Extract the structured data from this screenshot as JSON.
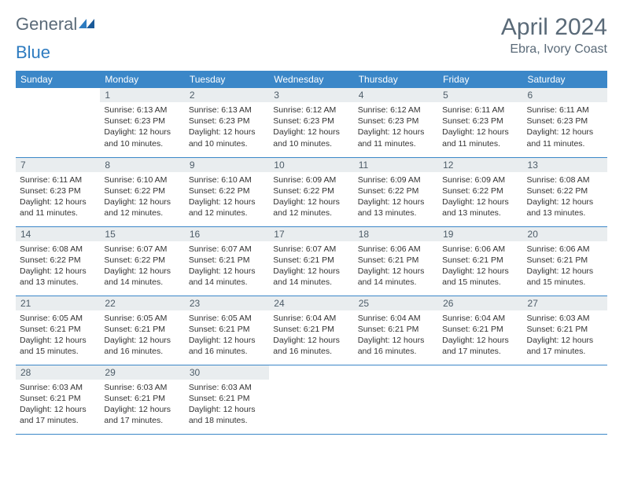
{
  "logo": {
    "part1": "General",
    "part2": "Blue"
  },
  "title": "April 2024",
  "location": "Ebra, Ivory Coast",
  "columns": [
    "Sunday",
    "Monday",
    "Tuesday",
    "Wednesday",
    "Thursday",
    "Friday",
    "Saturday"
  ],
  "colors": {
    "header_bg": "#3b87c8",
    "header_text": "#ffffff",
    "daynum_bg": "#e9edef",
    "text": "#333333",
    "title_color": "#5a6a78",
    "border": "#3b87c8"
  },
  "first_day_col": 1,
  "days": [
    {
      "n": 1,
      "sr": "6:13 AM",
      "ss": "6:23 PM",
      "d1": "12 hours",
      "d2": "and 10 minutes."
    },
    {
      "n": 2,
      "sr": "6:13 AM",
      "ss": "6:23 PM",
      "d1": "12 hours",
      "d2": "and 10 minutes."
    },
    {
      "n": 3,
      "sr": "6:12 AM",
      "ss": "6:23 PM",
      "d1": "12 hours",
      "d2": "and 10 minutes."
    },
    {
      "n": 4,
      "sr": "6:12 AM",
      "ss": "6:23 PM",
      "d1": "12 hours",
      "d2": "and 11 minutes."
    },
    {
      "n": 5,
      "sr": "6:11 AM",
      "ss": "6:23 PM",
      "d1": "12 hours",
      "d2": "and 11 minutes."
    },
    {
      "n": 6,
      "sr": "6:11 AM",
      "ss": "6:23 PM",
      "d1": "12 hours",
      "d2": "and 11 minutes."
    },
    {
      "n": 7,
      "sr": "6:11 AM",
      "ss": "6:23 PM",
      "d1": "12 hours",
      "d2": "and 11 minutes."
    },
    {
      "n": 8,
      "sr": "6:10 AM",
      "ss": "6:22 PM",
      "d1": "12 hours",
      "d2": "and 12 minutes."
    },
    {
      "n": 9,
      "sr": "6:10 AM",
      "ss": "6:22 PM",
      "d1": "12 hours",
      "d2": "and 12 minutes."
    },
    {
      "n": 10,
      "sr": "6:09 AM",
      "ss": "6:22 PM",
      "d1": "12 hours",
      "d2": "and 12 minutes."
    },
    {
      "n": 11,
      "sr": "6:09 AM",
      "ss": "6:22 PM",
      "d1": "12 hours",
      "d2": "and 13 minutes."
    },
    {
      "n": 12,
      "sr": "6:09 AM",
      "ss": "6:22 PM",
      "d1": "12 hours",
      "d2": "and 13 minutes."
    },
    {
      "n": 13,
      "sr": "6:08 AM",
      "ss": "6:22 PM",
      "d1": "12 hours",
      "d2": "and 13 minutes."
    },
    {
      "n": 14,
      "sr": "6:08 AM",
      "ss": "6:22 PM",
      "d1": "12 hours",
      "d2": "and 13 minutes."
    },
    {
      "n": 15,
      "sr": "6:07 AM",
      "ss": "6:22 PM",
      "d1": "12 hours",
      "d2": "and 14 minutes."
    },
    {
      "n": 16,
      "sr": "6:07 AM",
      "ss": "6:21 PM",
      "d1": "12 hours",
      "d2": "and 14 minutes."
    },
    {
      "n": 17,
      "sr": "6:07 AM",
      "ss": "6:21 PM",
      "d1": "12 hours",
      "d2": "and 14 minutes."
    },
    {
      "n": 18,
      "sr": "6:06 AM",
      "ss": "6:21 PM",
      "d1": "12 hours",
      "d2": "and 14 minutes."
    },
    {
      "n": 19,
      "sr": "6:06 AM",
      "ss": "6:21 PM",
      "d1": "12 hours",
      "d2": "and 15 minutes."
    },
    {
      "n": 20,
      "sr": "6:06 AM",
      "ss": "6:21 PM",
      "d1": "12 hours",
      "d2": "and 15 minutes."
    },
    {
      "n": 21,
      "sr": "6:05 AM",
      "ss": "6:21 PM",
      "d1": "12 hours",
      "d2": "and 15 minutes."
    },
    {
      "n": 22,
      "sr": "6:05 AM",
      "ss": "6:21 PM",
      "d1": "12 hours",
      "d2": "and 16 minutes."
    },
    {
      "n": 23,
      "sr": "6:05 AM",
      "ss": "6:21 PM",
      "d1": "12 hours",
      "d2": "and 16 minutes."
    },
    {
      "n": 24,
      "sr": "6:04 AM",
      "ss": "6:21 PM",
      "d1": "12 hours",
      "d2": "and 16 minutes."
    },
    {
      "n": 25,
      "sr": "6:04 AM",
      "ss": "6:21 PM",
      "d1": "12 hours",
      "d2": "and 16 minutes."
    },
    {
      "n": 26,
      "sr": "6:04 AM",
      "ss": "6:21 PM",
      "d1": "12 hours",
      "d2": "and 17 minutes."
    },
    {
      "n": 27,
      "sr": "6:03 AM",
      "ss": "6:21 PM",
      "d1": "12 hours",
      "d2": "and 17 minutes."
    },
    {
      "n": 28,
      "sr": "6:03 AM",
      "ss": "6:21 PM",
      "d1": "12 hours",
      "d2": "and 17 minutes."
    },
    {
      "n": 29,
      "sr": "6:03 AM",
      "ss": "6:21 PM",
      "d1": "12 hours",
      "d2": "and 17 minutes."
    },
    {
      "n": 30,
      "sr": "6:03 AM",
      "ss": "6:21 PM",
      "d1": "12 hours",
      "d2": "and 18 minutes."
    }
  ],
  "labels": {
    "sunrise": "Sunrise:",
    "sunset": "Sunset:",
    "daylight": "Daylight:"
  }
}
